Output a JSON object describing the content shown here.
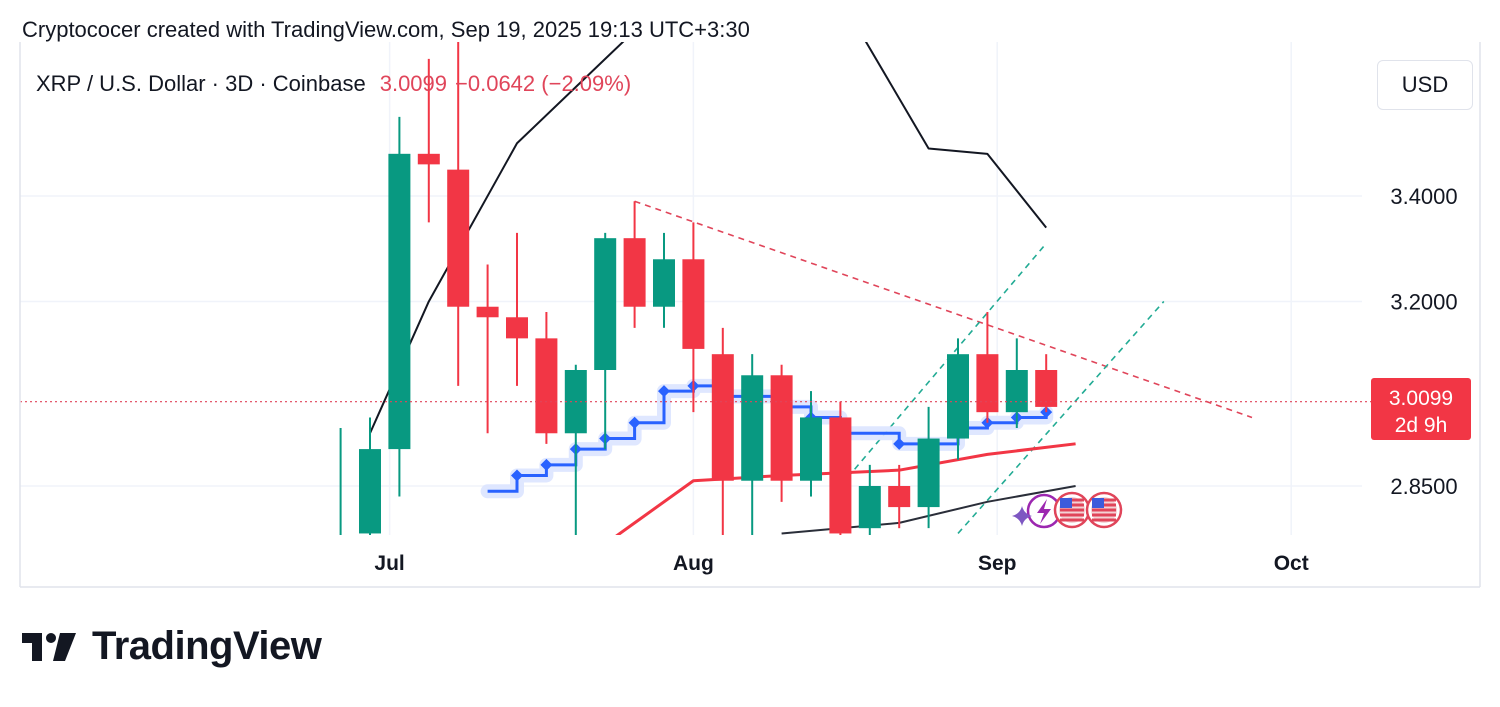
{
  "header": {
    "attribution": "Cryptococer created with TradingView.com, Sep 19, 2025 19:13 UTC+3:30"
  },
  "symbol": {
    "name": "XRP / U.S. Dollar · 3D · Coinbase",
    "price": "3.0099",
    "change": "−0.0642 (−2.09%)"
  },
  "currency_label": "USD",
  "price_tag": {
    "price": "3.0099",
    "countdown": "2d 9h"
  },
  "branding": {
    "name": "TradingView"
  },
  "colors": {
    "up": "#089981",
    "down": "#f23645",
    "accent_blue": "#2962ff",
    "price_line": "#e0455a"
  },
  "chart_data": {
    "type": "candlestick",
    "timeframe": "3D",
    "ylim": [
      2.76,
      3.78
    ],
    "y_ticks": [
      "3.4000",
      "3.2000",
      "2.8500"
    ],
    "x_ticks": [
      "Jul",
      "Aug",
      "Sep",
      "Oct"
    ],
    "last_price": 3.0099,
    "candles": [
      {
        "date": "2025-06-26",
        "open": 2.75,
        "high": 2.96,
        "low": 2.6,
        "close": 2.75
      },
      {
        "date": "2025-06-29",
        "open": 2.76,
        "high": 2.98,
        "low": 2.6,
        "close": 2.92
      },
      {
        "date": "2025-07-02",
        "open": 2.92,
        "high": 3.55,
        "low": 2.83,
        "close": 3.48
      },
      {
        "date": "2025-07-05",
        "open": 3.48,
        "high": 3.66,
        "low": 3.35,
        "close": 3.46
      },
      {
        "date": "2025-07-08",
        "open": 3.45,
        "high": 3.76,
        "low": 3.04,
        "close": 3.19
      },
      {
        "date": "2025-07-11",
        "open": 3.19,
        "high": 3.27,
        "low": 2.95,
        "close": 3.17
      },
      {
        "date": "2025-07-14",
        "open": 3.17,
        "high": 3.33,
        "low": 3.04,
        "close": 3.13
      },
      {
        "date": "2025-07-17",
        "open": 3.13,
        "high": 3.18,
        "low": 2.93,
        "close": 2.95
      },
      {
        "date": "2025-07-20",
        "open": 2.95,
        "high": 3.08,
        "low": 2.73,
        "close": 3.07
      },
      {
        "date": "2025-07-23",
        "open": 3.07,
        "high": 3.33,
        "low": 2.92,
        "close": 3.32
      },
      {
        "date": "2025-07-26",
        "open": 3.32,
        "high": 3.39,
        "low": 3.15,
        "close": 3.19
      },
      {
        "date": "2025-07-29",
        "open": 3.19,
        "high": 3.33,
        "low": 3.15,
        "close": 3.28
      },
      {
        "date": "2025-08-01",
        "open": 3.28,
        "high": 3.35,
        "low": 2.99,
        "close": 3.11
      },
      {
        "date": "2025-08-04",
        "open": 3.1,
        "high": 3.15,
        "low": 2.73,
        "close": 2.86
      },
      {
        "date": "2025-08-07",
        "open": 2.86,
        "high": 3.1,
        "low": 2.73,
        "close": 3.06
      },
      {
        "date": "2025-08-10",
        "open": 3.06,
        "high": 3.08,
        "low": 2.82,
        "close": 2.86
      },
      {
        "date": "2025-08-13",
        "open": 2.86,
        "high": 3.03,
        "low": 2.83,
        "close": 2.98
      },
      {
        "date": "2025-08-16",
        "open": 2.98,
        "high": 3.01,
        "low": 2.75,
        "close": 2.76
      },
      {
        "date": "2025-08-19",
        "open": 2.77,
        "high": 2.89,
        "low": 2.7,
        "close": 2.85
      },
      {
        "date": "2025-08-22",
        "open": 2.85,
        "high": 2.89,
        "low": 2.77,
        "close": 2.81
      },
      {
        "date": "2025-08-25",
        "open": 2.81,
        "high": 3.0,
        "low": 2.77,
        "close": 2.94
      },
      {
        "date": "2025-08-28",
        "open": 2.94,
        "high": 3.13,
        "low": 2.9,
        "close": 3.1
      },
      {
        "date": "2025-08-31",
        "open": 3.1,
        "high": 3.18,
        "low": 2.97,
        "close": 2.99
      },
      {
        "date": "2025-09-03",
        "open": 2.99,
        "high": 3.13,
        "low": 2.96,
        "close": 3.07
      },
      {
        "date": "2025-09-06",
        "open": 3.07,
        "high": 3.1,
        "low": 2.99,
        "close": 3.0
      }
    ],
    "overlays": [
      {
        "name": "",
        "color": "#131722",
        "points": [
          [
            "2025-06-29",
            2.95
          ],
          [
            "2025-07-05",
            3.2
          ],
          [
            "2025-07-14",
            3.5
          ],
          [
            "2025-07-23",
            3.66
          ],
          [
            "2025-08-01",
            3.82
          ],
          [
            "2025-08-13",
            3.87
          ],
          [
            "2025-08-25",
            3.49
          ],
          [
            "2025-08-31",
            3.48
          ],
          [
            "2025-09-06",
            3.34
          ]
        ]
      },
      {
        "name": "",
        "color": "#f23645",
        "points": [
          [
            "2025-07-23",
            2.74
          ],
          [
            "2025-08-01",
            2.86
          ],
          [
            "2025-08-10",
            2.87
          ],
          [
            "2025-08-22",
            2.88
          ],
          [
            "2025-08-31",
            2.91
          ],
          [
            "2025-09-09",
            2.93
          ]
        ]
      },
      {
        "name": "",
        "color": "#2a2e39",
        "points": [
          [
            "2025-08-10",
            2.76
          ],
          [
            "2025-08-22",
            2.78
          ],
          [
            "2025-08-31",
            2.82
          ],
          [
            "2025-09-09",
            2.85
          ]
        ]
      },
      {
        "name": "",
        "color": "#2962ff",
        "step": true,
        "points": [
          [
            "2025-07-11",
            2.84
          ],
          [
            "2025-07-14",
            2.87
          ],
          [
            "2025-07-17",
            2.89
          ],
          [
            "2025-07-20",
            2.92
          ],
          [
            "2025-07-23",
            2.94
          ],
          [
            "2025-07-26",
            2.97
          ],
          [
            "2025-07-29",
            3.03
          ],
          [
            "2025-08-01",
            3.04
          ],
          [
            "2025-08-04",
            3.02
          ],
          [
            "2025-08-10",
            3.0
          ],
          [
            "2025-08-13",
            2.98
          ],
          [
            "2025-08-16",
            2.95
          ],
          [
            "2025-08-22",
            2.93
          ],
          [
            "2025-08-28",
            2.96
          ],
          [
            "2025-08-31",
            2.97
          ],
          [
            "2025-09-03",
            2.98
          ],
          [
            "2025-09-06",
            2.99
          ]
        ]
      }
    ],
    "trendlines": [
      {
        "style": "dashed",
        "color": "#e0455a",
        "from": [
          "2025-07-26",
          3.39
        ],
        "to": [
          "2025-09-27",
          2.98
        ]
      },
      {
        "style": "dashed",
        "color": "#22ab94",
        "from": [
          "2025-08-16",
          2.85
        ],
        "to": [
          "2025-09-06",
          3.31
        ]
      },
      {
        "style": "dashed",
        "color": "#22ab94",
        "from": [
          "2025-08-28",
          2.76
        ],
        "to": [
          "2025-09-18",
          3.2
        ]
      }
    ]
  }
}
